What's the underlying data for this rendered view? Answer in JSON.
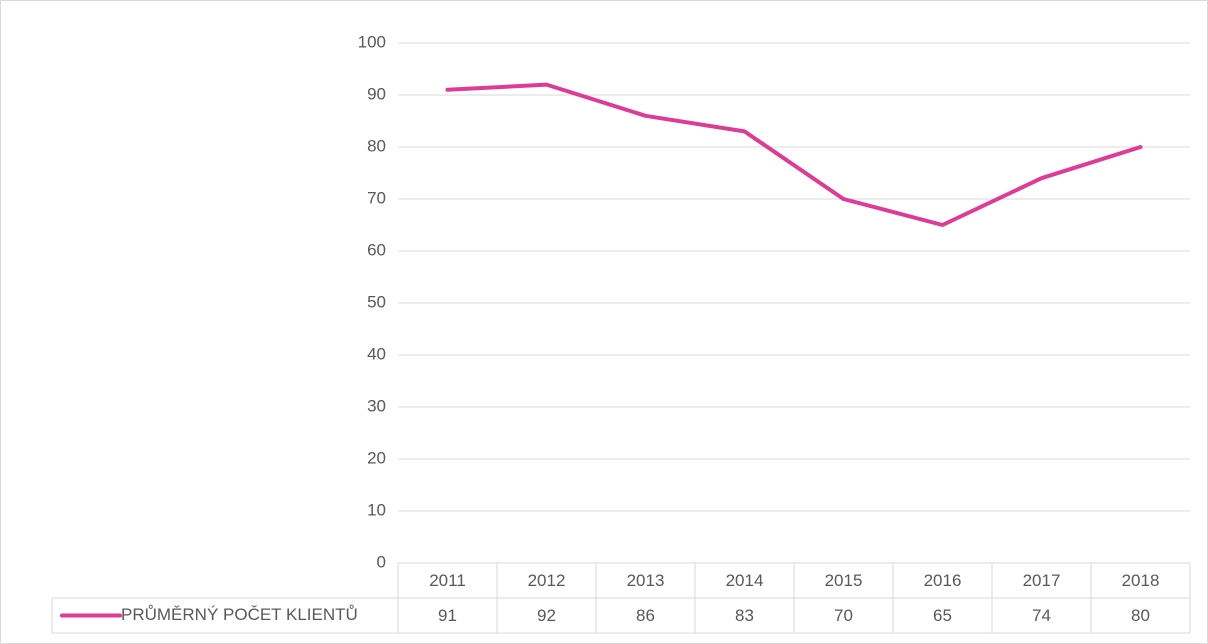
{
  "chart_data": {
    "type": "line",
    "categories": [
      "2011",
      "2012",
      "2013",
      "2014",
      "2015",
      "2016",
      "2017",
      "2018"
    ],
    "series": [
      {
        "name": "PRŮMĚRNÝ POČET KLIENTŮ",
        "color": "#e03a97",
        "values": [
          91,
          92,
          86,
          83,
          70,
          65,
          74,
          80
        ]
      }
    ],
    "ylim": [
      0,
      100
    ],
    "yticks": [
      0,
      10,
      20,
      30,
      40,
      50,
      60,
      70,
      80,
      90,
      100
    ],
    "grid": true,
    "data_table": true
  }
}
